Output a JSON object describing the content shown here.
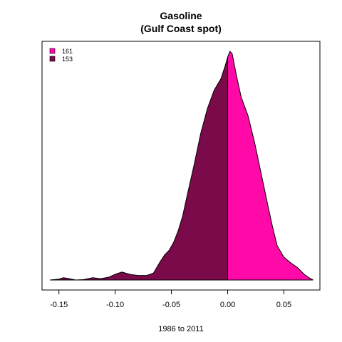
{
  "chart_data": {
    "type": "area",
    "title": "Gasoline",
    "subtitle": "(Gulf Coast spot)",
    "xlabel": "1986 to 2011",
    "ylabel": "",
    "xlim": [
      -0.165,
      0.082
    ],
    "ylim": [
      0,
      1.05
    ],
    "xticks": [
      -0.15,
      -0.1,
      -0.05,
      0.0,
      0.05
    ],
    "xtick_labels": [
      "-0.15",
      "-0.10",
      "-0.05",
      "0.00",
      "0.05"
    ],
    "split_at": 0.0,
    "grid": false,
    "legend_position": "top-left",
    "series": [
      {
        "name": "161",
        "color": "#ff0aa8",
        "side": "positive"
      },
      {
        "name": "153",
        "color": "#7a0a4a",
        "side": "negative"
      }
    ],
    "density": [
      [
        -0.158,
        0.0
      ],
      [
        -0.15,
        0.004
      ],
      [
        -0.146,
        0.01
      ],
      [
        -0.142,
        0.007
      ],
      [
        -0.135,
        0.0
      ],
      [
        -0.128,
        0.002
      ],
      [
        -0.12,
        0.01
      ],
      [
        -0.113,
        0.006
      ],
      [
        -0.106,
        0.012
      ],
      [
        -0.1,
        0.025
      ],
      [
        -0.094,
        0.035
      ],
      [
        -0.087,
        0.025
      ],
      [
        -0.08,
        0.02
      ],
      [
        -0.072,
        0.02
      ],
      [
        -0.066,
        0.03
      ],
      [
        -0.06,
        0.08
      ],
      [
        -0.056,
        0.11
      ],
      [
        -0.052,
        0.13
      ],
      [
        -0.048,
        0.165
      ],
      [
        -0.044,
        0.215
      ],
      [
        -0.04,
        0.28
      ],
      [
        -0.036,
        0.37
      ],
      [
        -0.03,
        0.5
      ],
      [
        -0.024,
        0.64
      ],
      [
        -0.018,
        0.75
      ],
      [
        -0.012,
        0.83
      ],
      [
        -0.006,
        0.88
      ],
      [
        -0.002,
        0.94
      ],
      [
        0.0,
        0.975
      ],
      [
        0.002,
        1.0
      ],
      [
        0.004,
        0.99
      ],
      [
        0.008,
        0.89
      ],
      [
        0.012,
        0.8
      ],
      [
        0.018,
        0.72
      ],
      [
        0.024,
        0.6
      ],
      [
        0.03,
        0.46
      ],
      [
        0.036,
        0.32
      ],
      [
        0.04,
        0.23
      ],
      [
        0.044,
        0.15
      ],
      [
        0.05,
        0.1
      ],
      [
        0.056,
        0.075
      ],
      [
        0.062,
        0.055
      ],
      [
        0.068,
        0.025
      ],
      [
        0.073,
        0.008
      ],
      [
        0.076,
        0.0
      ]
    ]
  }
}
